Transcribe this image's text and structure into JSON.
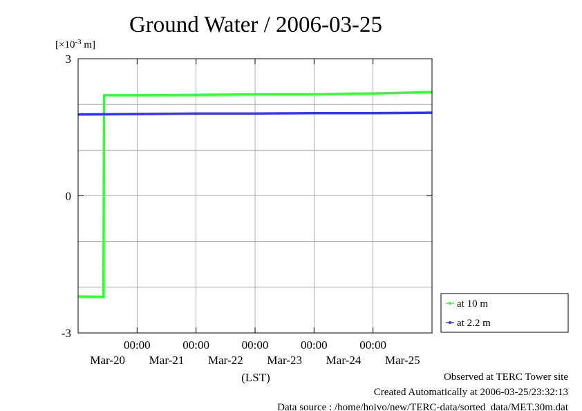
{
  "chart_data": {
    "type": "line",
    "title": "Ground Water / 2006-03-25",
    "unit_label": "[×10",
    "unit_exp": "-3",
    "unit_suffix": " m]",
    "ylim": [
      -3,
      3
    ],
    "y_ticks": [
      "3",
      "0",
      "-3"
    ],
    "y_tick_values": [
      3,
      0,
      -3
    ],
    "y_grid_step": 1,
    "xlim": [
      0,
      6
    ],
    "x_time_labels": [
      "00:00",
      "00:00",
      "00:00",
      "00:00",
      "00:00"
    ],
    "x_date_labels": [
      "Mar-20",
      "Mar-21",
      "Mar-22",
      "Mar-23",
      "Mar-24",
      "Mar-25"
    ],
    "x_grid": [
      1,
      2,
      3,
      4,
      5
    ],
    "x_date_positions": [
      0.5,
      1.5,
      2.5,
      3.5,
      4.5,
      5.5
    ],
    "xlabel": "(LST)",
    "grid": true,
    "legend_position": "bottom-right outside",
    "series": [
      {
        "name": "at 10 m",
        "color": "#33ff33",
        "points": [
          [
            0,
            -2.2
          ],
          [
            0.43,
            -2.21
          ],
          [
            0.44,
            2.2
          ],
          [
            1,
            2.2
          ],
          [
            2,
            2.21
          ],
          [
            3,
            2.22
          ],
          [
            4,
            2.22
          ],
          [
            5,
            2.24
          ],
          [
            6,
            2.27
          ]
        ]
      },
      {
        "name": "at 2.2 m",
        "color": "#3333ff",
        "points": [
          [
            0,
            1.78
          ],
          [
            1,
            1.79
          ],
          [
            2,
            1.8
          ],
          [
            3,
            1.8
          ],
          [
            4,
            1.81
          ],
          [
            5,
            1.81
          ],
          [
            6,
            1.82
          ]
        ]
      }
    ]
  },
  "footer": {
    "line1": "Observed at TERC Tower site",
    "line2": "Created Automatically at 2006-03-25/23:32:13",
    "line3": "Data source : /home/hoivo/new/TERC-data/sorted_data/MET.30m.dat"
  }
}
